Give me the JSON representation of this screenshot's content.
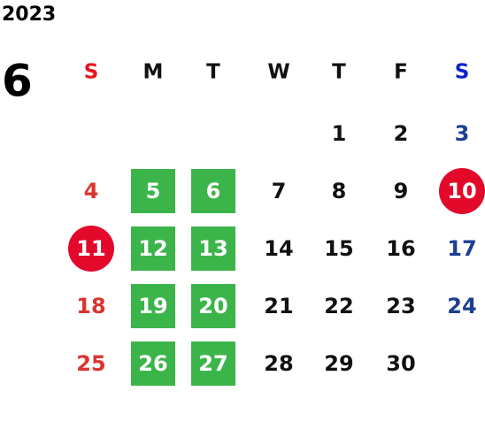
{
  "year": "2023",
  "month": "6",
  "weekdays": [
    {
      "label": "S",
      "color": "#e8141c",
      "day_color": "#d93530"
    },
    {
      "label": "M",
      "color": "#111111",
      "day_color": "#111111"
    },
    {
      "label": "T",
      "color": "#111111",
      "day_color": "#111111"
    },
    {
      "label": "W",
      "color": "#111111",
      "day_color": "#111111"
    },
    {
      "label": "T",
      "color": "#111111",
      "day_color": "#111111"
    },
    {
      "label": "F",
      "color": "#111111",
      "day_color": "#111111"
    },
    {
      "label": "S",
      "color": "#0b22c9",
      "day_color": "#1c3f94"
    }
  ],
  "marks": {
    "square": "#3bb54a",
    "circle": "#e3092b"
  },
  "weeks": [
    [
      null,
      null,
      null,
      null,
      {
        "day": 1
      },
      {
        "day": 2
      },
      {
        "day": 3
      }
    ],
    [
      {
        "day": 4
      },
      {
        "day": 5,
        "mark": "square"
      },
      {
        "day": 6,
        "mark": "square"
      },
      {
        "day": 7
      },
      {
        "day": 8
      },
      {
        "day": 9
      },
      {
        "day": 10,
        "mark": "circle"
      }
    ],
    [
      {
        "day": 11,
        "mark": "circle"
      },
      {
        "day": 12,
        "mark": "square"
      },
      {
        "day": 13,
        "mark": "square"
      },
      {
        "day": 14
      },
      {
        "day": 15
      },
      {
        "day": 16
      },
      {
        "day": 17
      }
    ],
    [
      {
        "day": 18
      },
      {
        "day": 19,
        "mark": "square"
      },
      {
        "day": 20,
        "mark": "square"
      },
      {
        "day": 21
      },
      {
        "day": 22
      },
      {
        "day": 23
      },
      {
        "day": 24
      }
    ],
    [
      {
        "day": 25
      },
      {
        "day": 26,
        "mark": "square"
      },
      {
        "day": 27,
        "mark": "square"
      },
      {
        "day": 28
      },
      {
        "day": 29
      },
      {
        "day": 30
      },
      null
    ]
  ]
}
